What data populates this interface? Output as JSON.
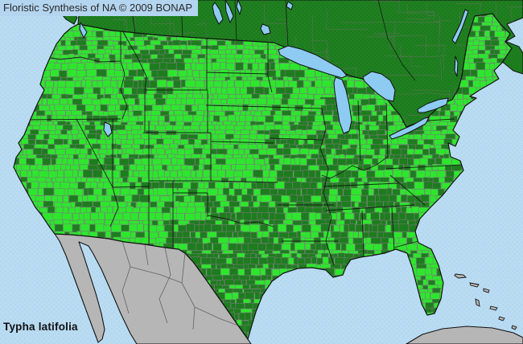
{
  "header": {
    "title": "Floristic Synthesis of NA © 2009 BONAP"
  },
  "footer": {
    "species": "Typha latifolia"
  },
  "colors": {
    "ocean": "#b9dcf3",
    "ocean_dot": "#a6cde9",
    "titlebar_bg": "#b4d5ef",
    "lake": "#8ecbf3",
    "bright_green": "#2ee62e",
    "dark_green": "#1d7c1d",
    "canada_dot": "#2f8d2f",
    "absent_gray": "#b6b6b6",
    "gray_border": "#5a5a5a",
    "coast_black": "#121212",
    "county_line": "#7d777d",
    "division_line": "#6f6f6f",
    "title_text": "#2a2a2a",
    "species_text": "#101010"
  }
}
